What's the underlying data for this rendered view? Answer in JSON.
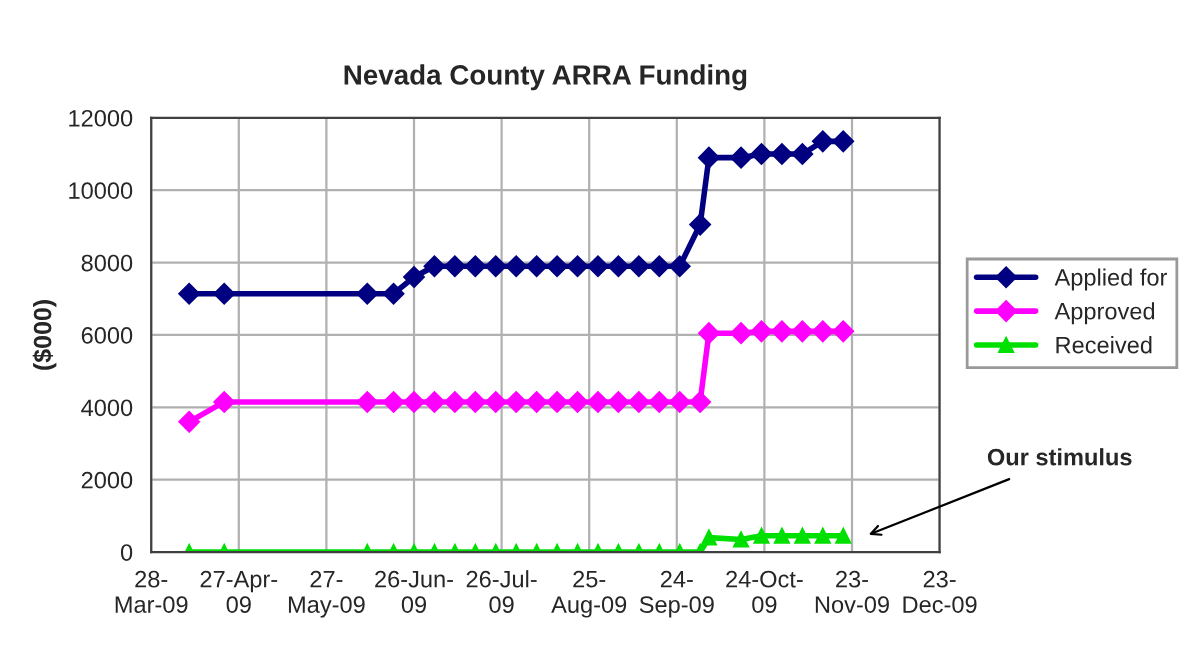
{
  "chart_data": {
    "type": "line",
    "title": "Nevada County ARRA Funding",
    "ylabel": "($000)",
    "x": [
      "2009-04-10",
      "2009-04-22",
      "2009-06-10",
      "2009-06-19",
      "2009-06-26",
      "2009-07-03",
      "2009-07-10",
      "2009-07-17",
      "2009-07-24",
      "2009-07-31",
      "2009-08-07",
      "2009-08-14",
      "2009-08-21",
      "2009-08-28",
      "2009-09-04",
      "2009-09-11",
      "2009-09-18",
      "2009-09-25",
      "2009-10-02",
      "2009-10-05",
      "2009-10-16",
      "2009-10-23",
      "2009-10-30",
      "2009-11-06",
      "2009-11-13",
      "2009-11-20"
    ],
    "series": [
      {
        "name": "Applied for",
        "color": "#000080",
        "marker": "diamond",
        "values": [
          7140,
          7140,
          7140,
          7140,
          7600,
          7900,
          7900,
          7900,
          7900,
          7900,
          7900,
          7900,
          7900,
          7900,
          7900,
          7900,
          7900,
          7900,
          9050,
          10900,
          10900,
          11000,
          11000,
          11000,
          11350,
          11350
        ]
      },
      {
        "name": "Approved",
        "color": "#ff00ff",
        "marker": "diamond",
        "values": [
          3600,
          4150,
          4150,
          4150,
          4150,
          4150,
          4150,
          4150,
          4150,
          4150,
          4150,
          4150,
          4150,
          4150,
          4150,
          4150,
          4150,
          4150,
          4150,
          6050,
          6050,
          6100,
          6100,
          6100,
          6100,
          6100
        ]
      },
      {
        "name": "Received",
        "color": "#00e000",
        "marker": "triangle",
        "values": [
          0,
          0,
          0,
          0,
          0,
          0,
          0,
          0,
          0,
          0,
          0,
          0,
          0,
          0,
          0,
          0,
          0,
          0,
          0,
          400,
          350,
          450,
          450,
          450,
          450,
          450
        ]
      }
    ],
    "xlim": [
      "2009-03-28",
      "2009-12-23"
    ],
    "xticks": [
      {
        "value": "2009-03-28",
        "label": "28-\nMar-09"
      },
      {
        "value": "2009-04-27",
        "label": "27-Apr-\n09"
      },
      {
        "value": "2009-05-27",
        "label": "27-\nMay-09"
      },
      {
        "value": "2009-06-26",
        "label": "26-Jun-\n09"
      },
      {
        "value": "2009-07-26",
        "label": "26-Jul-\n09"
      },
      {
        "value": "2009-08-25",
        "label": "25-\nAug-09"
      },
      {
        "value": "2009-09-24",
        "label": "24-\nSep-09"
      },
      {
        "value": "2009-10-24",
        "label": "24-Oct-\n09"
      },
      {
        "value": "2009-11-23",
        "label": "23-\nNov-09"
      },
      {
        "value": "2009-12-23",
        "label": "23-\nDec-09"
      }
    ],
    "ylim": [
      0,
      12000
    ],
    "yticks": [
      0,
      2000,
      4000,
      6000,
      8000,
      10000,
      12000
    ],
    "grid": true,
    "legend": "right",
    "line_style": "solid",
    "annotations": [
      "Our stimulus"
    ]
  }
}
